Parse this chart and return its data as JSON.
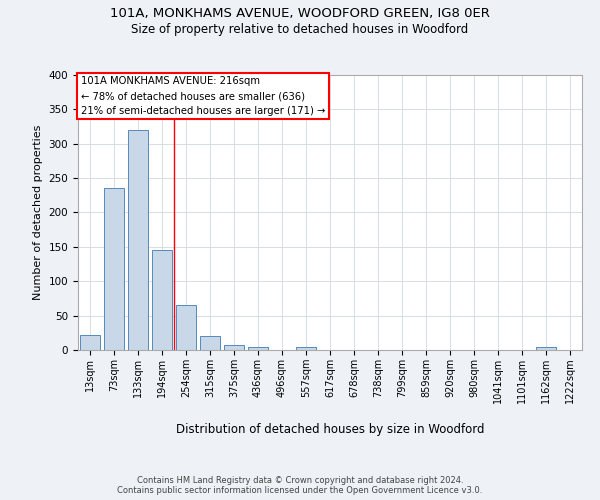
{
  "title1": "101A, MONKHAMS AVENUE, WOODFORD GREEN, IG8 0ER",
  "title2": "Size of property relative to detached houses in Woodford",
  "xlabel": "Distribution of detached houses by size in Woodford",
  "ylabel": "Number of detached properties",
  "bin_labels": [
    "13sqm",
    "73sqm",
    "133sqm",
    "194sqm",
    "254sqm",
    "315sqm",
    "375sqm",
    "436sqm",
    "496sqm",
    "557sqm",
    "617sqm",
    "678sqm",
    "738sqm",
    "799sqm",
    "859sqm",
    "920sqm",
    "980sqm",
    "1041sqm",
    "1101sqm",
    "1162sqm",
    "1222sqm"
  ],
  "bar_values": [
    22,
    236,
    320,
    146,
    65,
    21,
    8,
    5,
    0,
    5,
    0,
    0,
    0,
    0,
    0,
    0,
    0,
    0,
    0,
    5,
    0
  ],
  "bar_color": "#c8d8e8",
  "bar_edge_color": "#5588bb",
  "red_line_x": 3.5,
  "annotation_line1": "101A MONKHAMS AVENUE: 216sqm",
  "annotation_line2": "← 78% of detached houses are smaller (636)",
  "annotation_line3": "21% of semi-detached houses are larger (171) →",
  "footer_text": "Contains HM Land Registry data © Crown copyright and database right 2024.\nContains public sector information licensed under the Open Government Licence v3.0.",
  "bg_color": "#eef2f7",
  "plot_bg_color": "#ffffff",
  "grid_color": "#d0d8e0",
  "ylim": [
    0,
    400
  ],
  "yticks": [
    0,
    50,
    100,
    150,
    200,
    250,
    300,
    350,
    400
  ]
}
